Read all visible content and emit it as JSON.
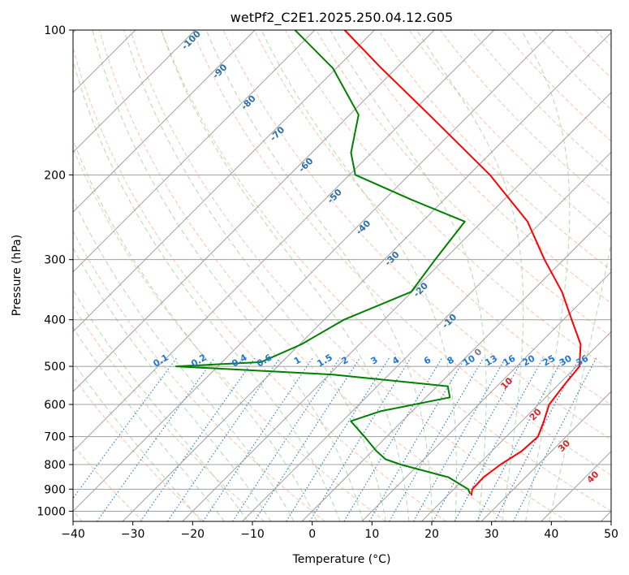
{
  "chart_data": {
    "type": "line",
    "title": "wetPf2_C2E1.2025.250.04.12.G05",
    "xlabel": "Temperature (°C)",
    "ylabel": "Pressure (hPa)",
    "xlim": [
      -40,
      50
    ],
    "ylim": [
      1050,
      100
    ],
    "y_scale": "log",
    "skew": "skew-T",
    "grid": true,
    "x_ticks": [
      "−40",
      "−30",
      "−20",
      "−10",
      "0",
      "10",
      "20",
      "30",
      "40",
      "50"
    ],
    "y_ticks": [
      "100",
      "200",
      "300",
      "400",
      "500",
      "600",
      "700",
      "800",
      "900",
      "1000"
    ],
    "series": [
      {
        "color": "#ff0000",
        "style": "temperature",
        "points": [
          {
            "p": 928,
            "t": 24.0
          },
          {
            "p": 900,
            "t": 23.1
          },
          {
            "p": 850,
            "t": 23.0
          },
          {
            "p": 800,
            "t": 23.7
          },
          {
            "p": 750,
            "t": 25.0
          },
          {
            "p": 700,
            "t": 25.3
          },
          {
            "p": 650,
            "t": 23.7
          },
          {
            "p": 600,
            "t": 21.8
          },
          {
            "p": 550,
            "t": 21.1
          },
          {
            "p": 500,
            "t": 20.5
          },
          {
            "p": 450,
            "t": 17.0
          },
          {
            "p": 400,
            "t": 11.4
          },
          {
            "p": 350,
            "t": 5.1
          },
          {
            "p": 300,
            "t": -3.2
          },
          {
            "p": 250,
            "t": -12.4
          },
          {
            "p": 200,
            "t": -26.5
          },
          {
            "p": 150,
            "t": -46.7
          },
          {
            "p": 120,
            "t": -62.5
          },
          {
            "p": 100,
            "t": -75.0
          }
        ]
      },
      {
        "color": "#008000",
        "style": "dewpoint",
        "points": [
          {
            "p": 920,
            "t": 23.5
          },
          {
            "p": 900,
            "t": 22.4
          },
          {
            "p": 850,
            "t": 17.1
          },
          {
            "p": 800,
            "t": 7.0
          },
          {
            "p": 780,
            "t": 3.6
          },
          {
            "p": 750,
            "t": 0.7
          },
          {
            "p": 700,
            "t": -3.7
          },
          {
            "p": 650,
            "t": -8.6
          },
          {
            "p": 620,
            "t": -5.3
          },
          {
            "p": 580,
            "t": 4.0
          },
          {
            "p": 550,
            "t": 1.8
          },
          {
            "p": 520,
            "t": -19.4
          },
          {
            "p": 500,
            "t": -47.0
          },
          {
            "p": 490,
            "t": -33.5
          },
          {
            "p": 450,
            "t": -29.7
          },
          {
            "p": 400,
            "t": -26.7
          },
          {
            "p": 350,
            "t": -20.1
          },
          {
            "p": 300,
            "t": -21.5
          },
          {
            "p": 250,
            "t": -22.9
          },
          {
            "p": 225,
            "t": -35.6
          },
          {
            "p": 200,
            "t": -49.0
          },
          {
            "p": 180,
            "t": -53.4
          },
          {
            "p": 150,
            "t": -58.5
          },
          {
            "p": 120,
            "t": -70.6
          },
          {
            "p": 100,
            "t": -83.3
          }
        ]
      }
    ],
    "mixing_ratio_labels": [
      "0.1",
      "0.2",
      "0.4",
      "0.6",
      "1",
      "1.5",
      "2",
      "3",
      "4",
      "6",
      "8",
      "10",
      "13",
      "16",
      "20",
      "25",
      "30",
      "36"
    ],
    "moist_adiabat_labels": [
      "-100",
      "-90",
      "-80",
      "-70",
      "-60",
      "-50",
      "-40",
      "-30",
      "-20",
      "-10",
      "0",
      "10",
      "20",
      "30",
      "40"
    ],
    "colors": {
      "temperature": "#ff0000",
      "dewpoint": "#008000",
      "dry_adiabat": "#f4a582",
      "moist_adiabat": "#7fbf7b",
      "mixing_ratio": "#1f77d4",
      "cold_label": "#2c6fa6",
      "warm_label": "#d62728",
      "zero_label": "#7f7f7f",
      "isotherm": "#a0a0a0",
      "isobar": "#a0a0a0"
    }
  }
}
